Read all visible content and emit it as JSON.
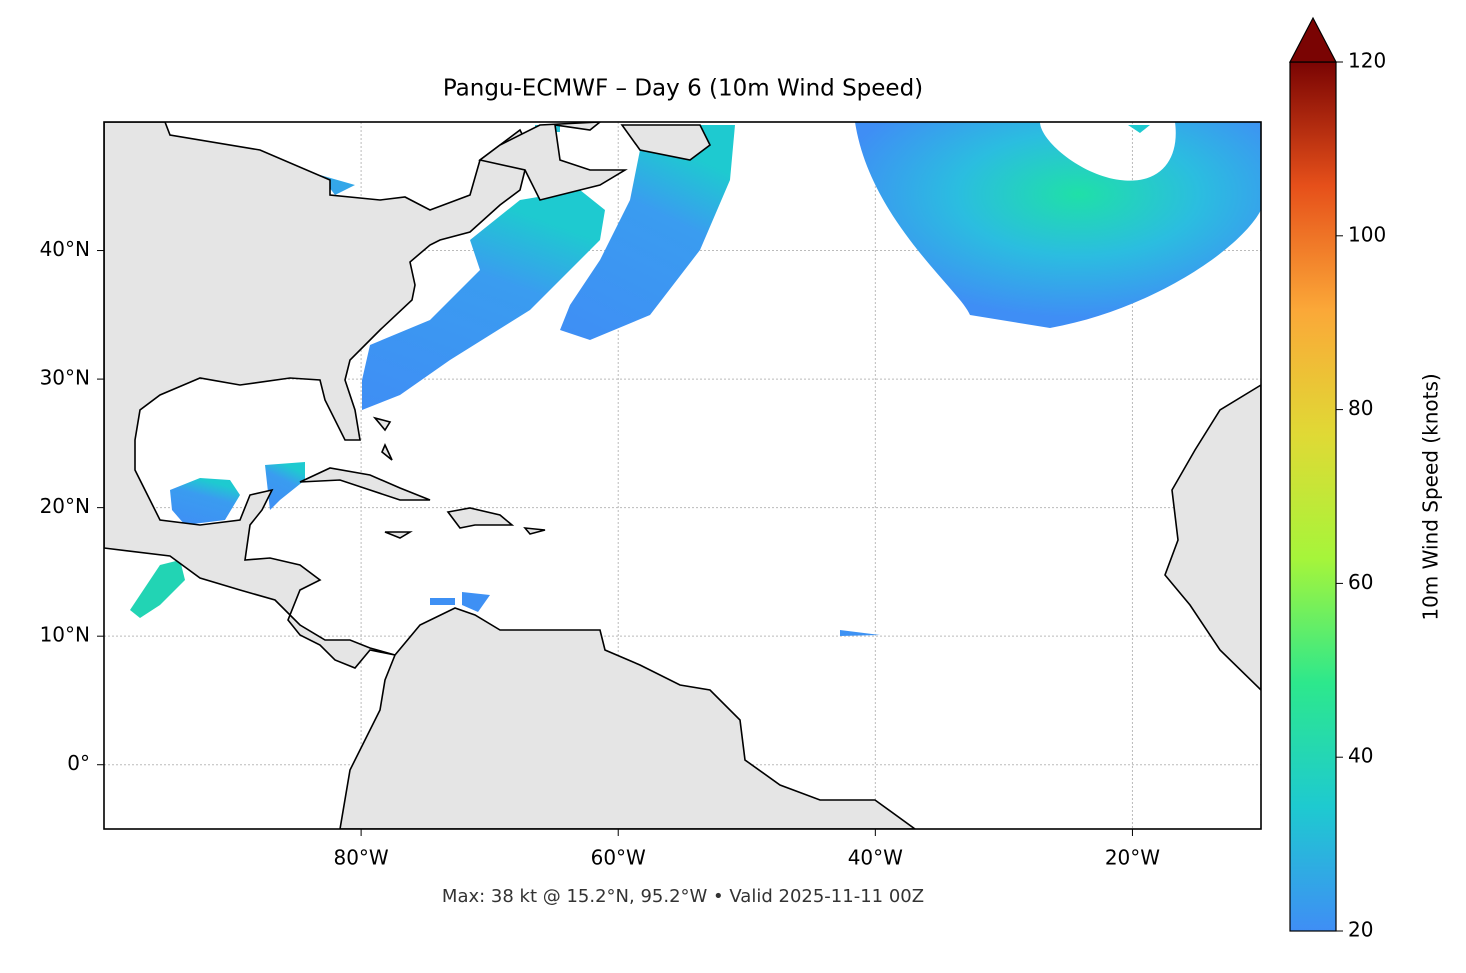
{
  "chart_data": {
    "type": "map",
    "title": "Pangu-ECMWF – Day 6 (10m Wind Speed)",
    "footer": "Max: 38 kt @ 15.2°N, 95.2°W • Valid 2025-11-11 00Z",
    "xlim": [
      -100,
      -10
    ],
    "ylim": [
      -5,
      50
    ],
    "xticks": [
      {
        "value": -80,
        "label": "80°W"
      },
      {
        "value": -60,
        "label": "60°W"
      },
      {
        "value": -40,
        "label": "40°W"
      },
      {
        "value": -20,
        "label": "20°W"
      }
    ],
    "yticks": [
      {
        "value": 0,
        "label": "0°"
      },
      {
        "value": 10,
        "label": "10°N"
      },
      {
        "value": 20,
        "label": "20°N"
      },
      {
        "value": 30,
        "label": "30°N"
      },
      {
        "value": 40,
        "label": "40°N"
      }
    ],
    "grid": true,
    "colorbar": {
      "label": "10m Wind Speed (knots)",
      "lim": [
        20,
        120
      ],
      "ticks": [
        20,
        40,
        60,
        80,
        100,
        120
      ],
      "colors": [
        "#3f8ef5",
        "#1ecad0",
        "#2de88c",
        "#a6f53a",
        "#e0d935",
        "#fba838",
        "#e6501a",
        "#7a0403"
      ]
    }
  }
}
